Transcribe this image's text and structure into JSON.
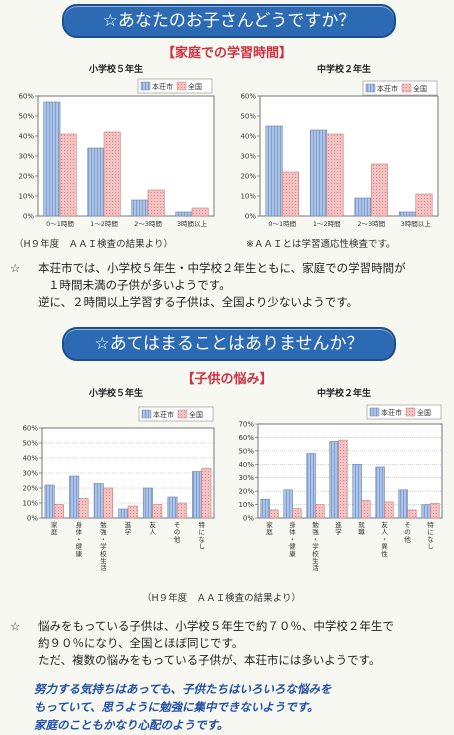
{
  "section1": {
    "banner": "☆あなたのお子さんどうですか？",
    "subtitle": "【家庭での学習時間】",
    "note_left": "（H９年度　ＡＡＩ検査の結果より）",
    "note_right": "※ＡＡＩとは学習適応性検査です。",
    "paragraph": {
      "mark": "☆",
      "lines": [
        "本荘市では、小学校５年生・中学校２年生ともに、家庭での学習時間が",
        "１時間未満の子供が多いようです。",
        "逆に、２時間以上学習する子供は、全国より少ないようです。"
      ]
    }
  },
  "section2": {
    "banner": "☆あてはまることはありませんか？",
    "subtitle": "【子供の悩み】",
    "note_center": "（H９年度　ＡＡＩ検査の結果より）",
    "paragraph": {
      "mark": "☆",
      "lines": [
        "悩みをもっている子供は、小学校５年生で約７０％、中学校２年生で",
        "約９０％になり、全国とほぼ同じです。",
        "ただ、複数の悩みをもっている子供が、本荘市には多いようです。"
      ]
    },
    "closing": [
      "努力する気持ちはあっても、子供たちはいろいろな悩みを",
      "もっていて、思うように勉強に集中できないようです。",
      "家庭のこともかなり心配のようです。"
    ]
  },
  "colors": {
    "honjo": "#aac3e8",
    "honjo_stroke": "#6b86b5",
    "national": "#f3c2c2",
    "national_stroke": "#d27a7a",
    "banner": "#2c6ab3"
  },
  "chart_data": [
    {
      "type": "bar",
      "title": "小学校５年生",
      "categories": [
        "0～1時間",
        "1～2時間",
        "2～3時間",
        "3時間以上"
      ],
      "series": [
        {
          "name": "本荘市",
          "values": [
            57,
            34,
            8,
            2
          ]
        },
        {
          "name": "全国",
          "values": [
            41,
            42,
            13,
            4
          ]
        }
      ],
      "ylim": [
        0,
        60
      ],
      "yticks": [
        "0%",
        "10%",
        "20%",
        "30%",
        "40%",
        "50%",
        "60%"
      ],
      "legend": "top-right",
      "grid": false
    },
    {
      "type": "bar",
      "title": "中学校２年生",
      "categories": [
        "0～1時間",
        "1～2時間",
        "2～3時間",
        "3時間以上"
      ],
      "series": [
        {
          "name": "本荘市",
          "values": [
            45,
            43,
            9,
            2
          ]
        },
        {
          "name": "全国",
          "values": [
            22,
            41,
            26,
            11
          ]
        }
      ],
      "ylim": [
        0,
        60
      ],
      "yticks": [
        "0%",
        "10%",
        "20%",
        "30%",
        "40%",
        "50%",
        "60%"
      ],
      "legend": "top-right",
      "grid": false
    },
    {
      "type": "bar",
      "title": "小学校５年生",
      "categories": [
        "家庭",
        "身体・健康",
        "勉強・学校生活",
        "進学",
        "友人",
        "その他",
        "特になし"
      ],
      "series": [
        {
          "name": "本荘市",
          "values": [
            22,
            28,
            23,
            6,
            20,
            14,
            31
          ]
        },
        {
          "name": "全国",
          "values": [
            9,
            13,
            20,
            8,
            9,
            10,
            33
          ]
        }
      ],
      "ylim": [
        0,
        60
      ],
      "yticks": [
        "0%",
        "10%",
        "20%",
        "30%",
        "40%",
        "50%",
        "60%"
      ],
      "legend": "top-right",
      "grid": true
    },
    {
      "type": "bar",
      "title": "中学校２年生",
      "categories": [
        "家庭",
        "身体・健康",
        "勉強・学校生活",
        "進学",
        "就職",
        "友人・異性",
        "その他",
        "特になし"
      ],
      "series": [
        {
          "name": "本荘市",
          "values": [
            14,
            21,
            48,
            57,
            40,
            38,
            21,
            10
          ]
        },
        {
          "name": "全国",
          "values": [
            6,
            7,
            10,
            58,
            13,
            12,
            6,
            11
          ]
        }
      ],
      "ylim": [
        0,
        70
      ],
      "yticks": [
        "0%",
        "10%",
        "20%",
        "30%",
        "40%",
        "50%",
        "60%",
        "70%"
      ],
      "legend": "top-right",
      "grid": true
    }
  ]
}
